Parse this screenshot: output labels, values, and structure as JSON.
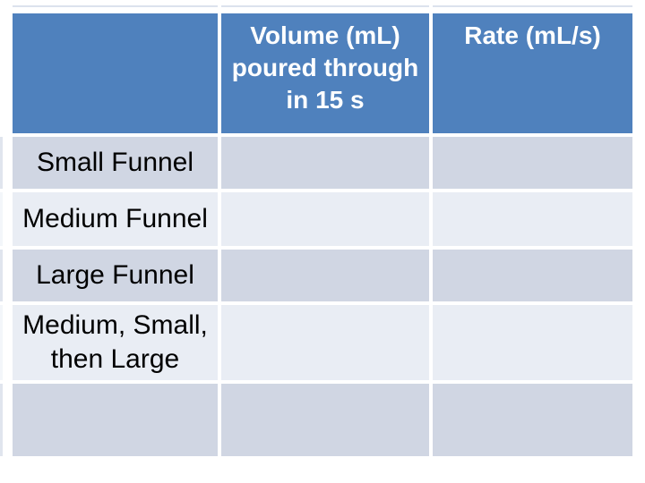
{
  "slide": {
    "background": "#FFFFFF"
  },
  "table": {
    "header": {
      "row_label_column": "",
      "volume": "Volume (mL)\npoured through\nin 15 s",
      "rate": "Rate (mL/s)"
    },
    "rows": [
      {
        "label": "Small Funnel",
        "volume": "",
        "rate": ""
      },
      {
        "label": "Medium Funnel",
        "volume": "",
        "rate": ""
      },
      {
        "label": "Large Funnel",
        "volume": "",
        "rate": ""
      },
      {
        "label": "Medium, Small,\nthen Large",
        "volume": "",
        "rate": ""
      },
      {
        "label": "",
        "volume": "",
        "rate": ""
      }
    ],
    "colors": {
      "header_bg": "#4F81BD",
      "header_text": "#FFFFFF",
      "band_dark": "#D0D6E3",
      "band_light": "#E9EDF4",
      "grid_line": "#FFFFFF",
      "label_text": "#000000"
    }
  }
}
